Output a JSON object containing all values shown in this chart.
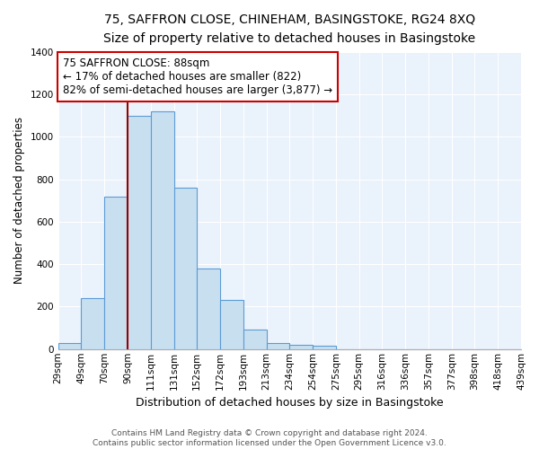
{
  "title": "75, SAFFRON CLOSE, CHINEHAM, BASINGSTOKE, RG24 8XQ",
  "subtitle": "Size of property relative to detached houses in Basingstoke",
  "xlabel": "Distribution of detached houses by size in Basingstoke",
  "ylabel": "Number of detached properties",
  "bin_labels": [
    "29sqm",
    "49sqm",
    "70sqm",
    "90sqm",
    "111sqm",
    "131sqm",
    "152sqm",
    "172sqm",
    "193sqm",
    "213sqm",
    "234sqm",
    "254sqm",
    "275sqm",
    "295sqm",
    "316sqm",
    "336sqm",
    "357sqm",
    "377sqm",
    "398sqm",
    "418sqm",
    "439sqm"
  ],
  "bin_values": [
    30,
    240,
    720,
    1100,
    1120,
    760,
    380,
    230,
    90,
    30,
    20,
    15,
    0,
    0,
    0,
    0,
    0,
    0,
    0,
    0
  ],
  "bar_color": "#c8dff0",
  "bar_edge_color": "#5b9bd5",
  "marker_line_color": "#990000",
  "annotation_text_line1": "75 SAFFRON CLOSE: 88sqm",
  "annotation_text_line2": "← 17% of detached houses are smaller (822)",
  "annotation_text_line3": "82% of semi-detached houses are larger (3,877) →",
  "annotation_box_color": "#ffffff",
  "annotation_box_edge": "#cc0000",
  "plot_bg_color": "#eaf2fb",
  "grid_color": "#ffffff",
  "ylim": [
    0,
    1400
  ],
  "yticks": [
    0,
    200,
    400,
    600,
    800,
    1000,
    1200,
    1400
  ],
  "title_fontsize": 10,
  "subtitle_fontsize": 9,
  "xlabel_fontsize": 9,
  "ylabel_fontsize": 8.5,
  "tick_fontsize": 7.5,
  "annotation_fontsize": 8.5,
  "footer_fontsize": 6.5,
  "footer_line1": "Contains HM Land Registry data © Crown copyright and database right 2024.",
  "footer_line2": "Contains public sector information licensed under the Open Government Licence v3.0."
}
